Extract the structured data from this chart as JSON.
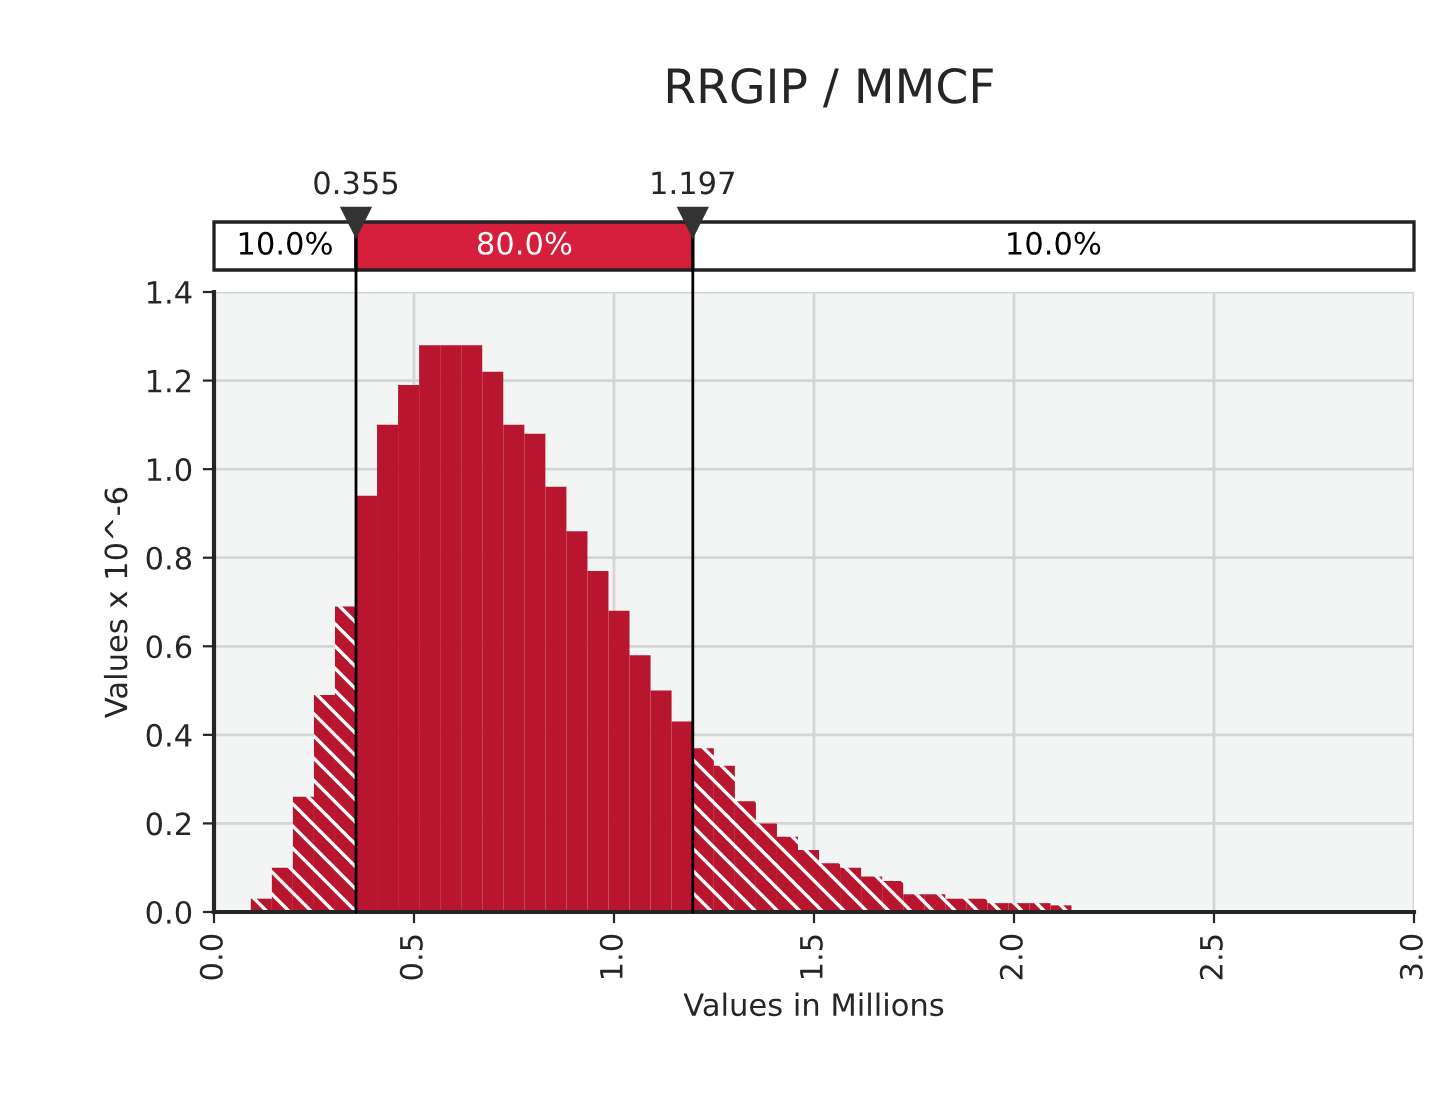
{
  "chart_data": {
    "type": "histogram",
    "title": "RRGIP / MMCF",
    "xlabel": "Values in Millions",
    "ylabel": "Values x 10^-6",
    "bins": [
      0.092,
      0.1446,
      0.1972,
      0.2498,
      0.3024,
      0.355,
      0.4076,
      0.4602,
      0.5128,
      0.5654,
      0.618,
      0.6706,
      0.7232,
      0.7758,
      0.8284,
      0.881,
      0.9336,
      0.9862,
      1.0388,
      1.0914,
      1.144,
      1.197,
      1.2496,
      1.3022,
      1.3548,
      1.4074,
      1.46,
      1.5126,
      1.5652,
      1.6178,
      1.6704,
      1.723,
      1.7756,
      1.8282,
      1.8808,
      1.9334,
      1.986,
      2.0386,
      2.0912,
      2.1438
    ],
    "values": [
      0.03,
      0.1,
      0.26,
      0.49,
      0.69,
      0.94,
      1.1,
      1.19,
      1.28,
      1.28,
      1.28,
      1.22,
      1.1,
      1.08,
      0.96,
      0.86,
      0.77,
      0.68,
      0.58,
      0.5,
      0.43,
      0.37,
      0.33,
      0.25,
      0.2,
      0.17,
      0.14,
      0.11,
      0.1,
      0.08,
      0.07,
      0.04,
      0.04,
      0.03,
      0.03,
      0.02,
      0.02,
      0.02,
      0.015
    ],
    "color": "#b8162f",
    "xlim": [
      0,
      3
    ],
    "ylim": [
      0,
      1.4
    ],
    "xticks": [
      {
        "value": 0,
        "label": "0.0"
      },
      {
        "value": 0.5,
        "label": "0.5"
      },
      {
        "value": 1,
        "label": "1.0"
      },
      {
        "value": 1.5,
        "label": "1.5"
      },
      {
        "value": 2,
        "label": "2.0"
      },
      {
        "value": 2.5,
        "label": "2.5"
      },
      {
        "value": 3,
        "label": "3.0"
      }
    ],
    "yticks": [
      {
        "value": 0,
        "label": "0.0"
      },
      {
        "value": 0.2,
        "label": "0.2"
      },
      {
        "value": 0.4,
        "label": "0.4"
      },
      {
        "value": 0.6,
        "label": "0.6"
      },
      {
        "value": 0.8,
        "label": "0.8"
      },
      {
        "value": 1,
        "label": "1.0"
      },
      {
        "value": 1.2,
        "label": "1.2"
      },
      {
        "value": 1.4,
        "label": "1.4"
      }
    ],
    "grid": true,
    "ref_lines": [
      {
        "axis": "x",
        "value": 0.355,
        "label": "0.355",
        "color": "#000000"
      },
      {
        "axis": "x",
        "value": 1.197,
        "label": "1.197",
        "color": "#000000"
      }
    ],
    "annotations": [
      "10.0%",
      "80.0%",
      "10.0%"
    ]
  }
}
